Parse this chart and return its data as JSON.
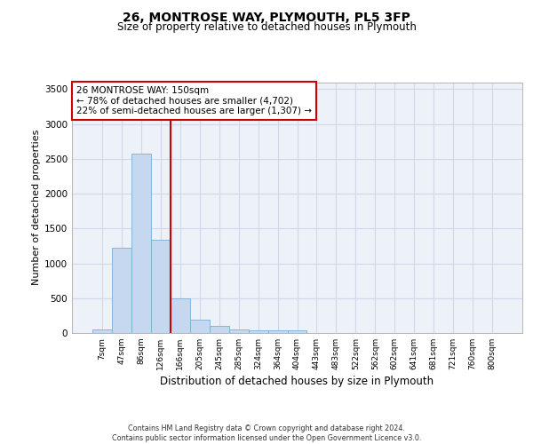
{
  "title_line1": "26, MONTROSE WAY, PLYMOUTH, PL5 3FP",
  "title_line2": "Size of property relative to detached houses in Plymouth",
  "xlabel": "Distribution of detached houses by size in Plymouth",
  "ylabel": "Number of detached properties",
  "categories": [
    "7sqm",
    "47sqm",
    "86sqm",
    "126sqm",
    "166sqm",
    "205sqm",
    "245sqm",
    "285sqm",
    "324sqm",
    "364sqm",
    "404sqm",
    "443sqm",
    "483sqm",
    "522sqm",
    "562sqm",
    "602sqm",
    "641sqm",
    "681sqm",
    "721sqm",
    "760sqm",
    "800sqm"
  ],
  "values": [
    50,
    1220,
    2580,
    1340,
    500,
    190,
    100,
    45,
    40,
    40,
    35,
    5,
    5,
    5,
    0,
    0,
    0,
    0,
    0,
    0,
    0
  ],
  "bar_color": "#c5d8ef",
  "bar_edge_color": "#7aafd4",
  "grid_color": "#d0d8ea",
  "background_color": "#edf1f8",
  "vline_color": "#cc0000",
  "vline_x": 3.5,
  "annotation_text": "26 MONTROSE WAY: 150sqm\n← 78% of detached houses are smaller (4,702)\n22% of semi-detached houses are larger (1,307) →",
  "annotation_box_edgecolor": "#cc0000",
  "ylim_max": 3600,
  "yticks": [
    0,
    500,
    1000,
    1500,
    2000,
    2500,
    3000,
    3500
  ],
  "footer_line1": "Contains HM Land Registry data © Crown copyright and database right 2024.",
  "footer_line2": "Contains public sector information licensed under the Open Government Licence v3.0."
}
